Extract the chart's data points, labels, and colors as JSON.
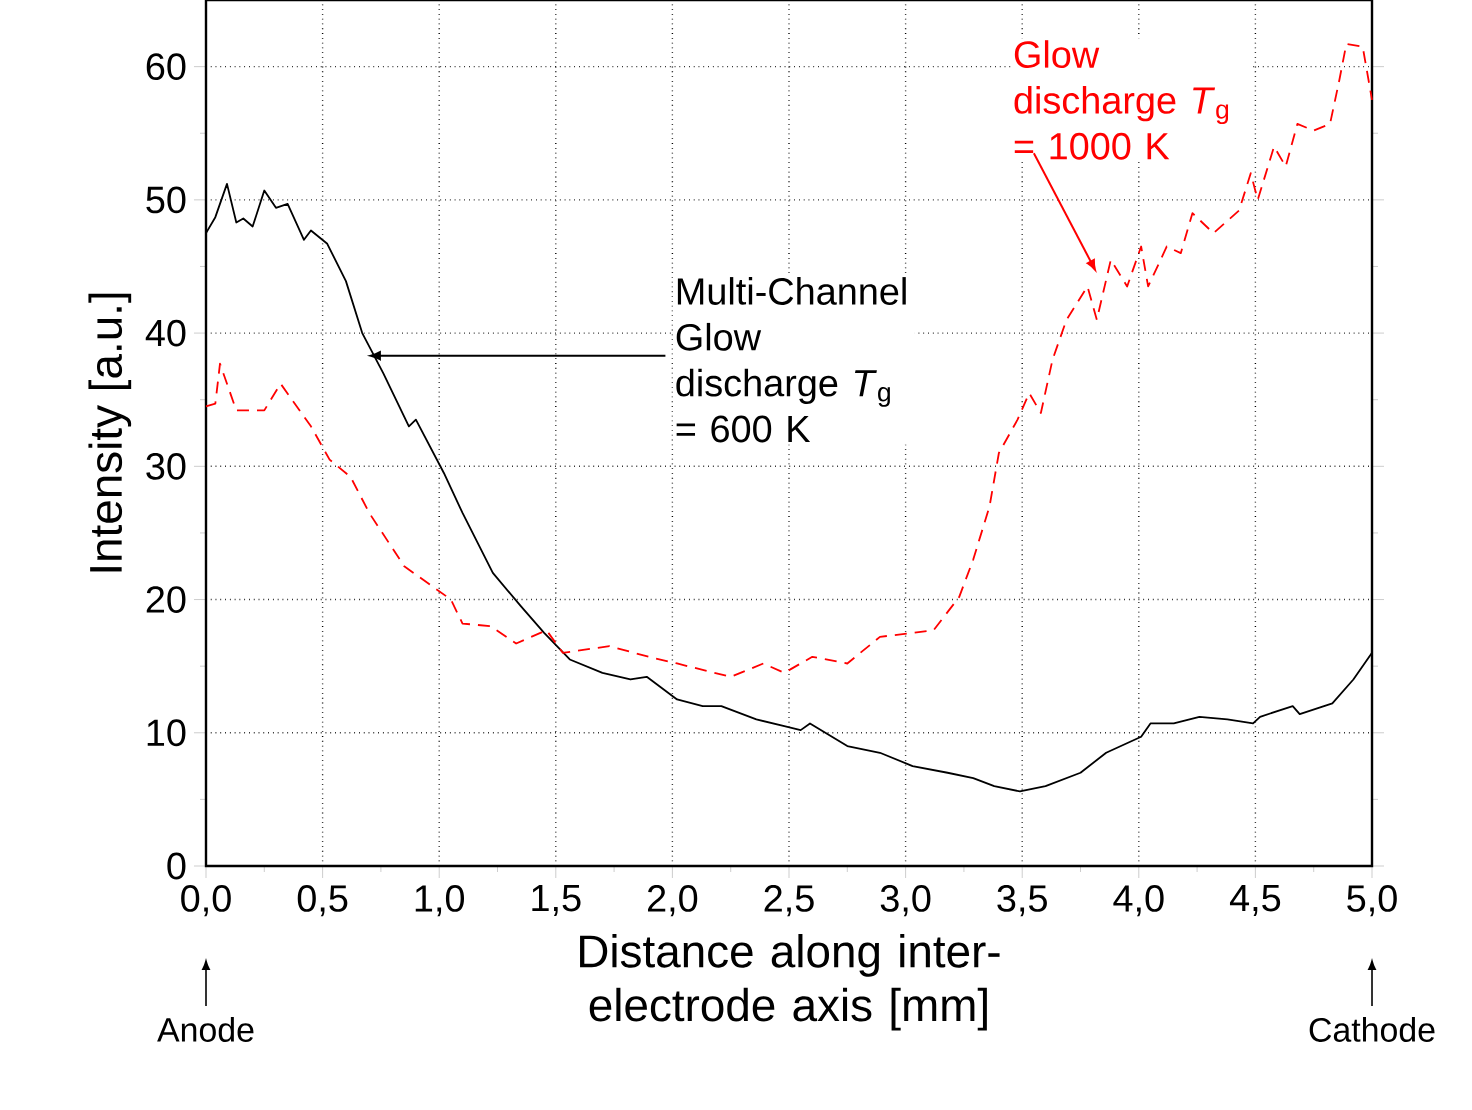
{
  "chart_data": {
    "type": "line",
    "xlabel": "Distance along inter-electrode axis [mm]",
    "ylabel": "Intensity [a.u.]",
    "xlim": [
      0,
      5
    ],
    "ylim": [
      0,
      65
    ],
    "xticks": [
      {
        "value": 0,
        "label": "0,0"
      },
      {
        "value": 0.5,
        "label": "0,5"
      },
      {
        "value": 1,
        "label": "1,0"
      },
      {
        "value": 1.5,
        "label": "1,5"
      },
      {
        "value": 2,
        "label": "2,0"
      },
      {
        "value": 2.5,
        "label": "2,5"
      },
      {
        "value": 3,
        "label": "3,0"
      },
      {
        "value": 3.5,
        "label": "3,5"
      },
      {
        "value": 4,
        "label": "4,0"
      },
      {
        "value": 4.5,
        "label": "4,5"
      },
      {
        "value": 5,
        "label": "5,0"
      }
    ],
    "yticks": [
      0,
      10,
      20,
      30,
      40,
      50,
      60
    ],
    "grid": true,
    "legend": false,
    "marker": "none",
    "series": [
      {
        "name": "Multi-Channel Glow discharge *T*$_{g}$ = 600 K",
        "color": "#000000",
        "line_style": "solid",
        "x": [
          0,
          0.04,
          0.09,
          0.13,
          0.16,
          0.2,
          0.25,
          0.3,
          0.35,
          0.42,
          0.45,
          0.52,
          0.6,
          0.67,
          0.76,
          0.87,
          0.9,
          1.02,
          1.1,
          1.23,
          1.35,
          1.45,
          1.56,
          1.7,
          1.82,
          1.89,
          2.02,
          2.13,
          2.21,
          2.36,
          2.48,
          2.55,
          2.59,
          2.75,
          2.89,
          3.03,
          3.18,
          3.29,
          3.38,
          3.49,
          3.6,
          3.75,
          3.86,
          4.01,
          4.05,
          4.15,
          4.26,
          4.38,
          4.49,
          4.52,
          4.66,
          4.69,
          4.83,
          4.92,
          5.0
        ],
        "values": [
          47.5,
          48.7,
          51.2,
          48.3,
          48.6,
          48.0,
          50.7,
          49.4,
          49.7,
          47.0,
          47.7,
          46.7,
          43.9,
          40.0,
          37.0,
          33.0,
          33.5,
          29.5,
          26.5,
          22.0,
          19.5,
          17.5,
          15.5,
          14.5,
          14.0,
          14.2,
          12.5,
          12.0,
          12.0,
          11.0,
          10.5,
          10.2,
          10.7,
          9.0,
          8.5,
          7.5,
          7.0,
          6.6,
          6.0,
          5.6,
          6.0,
          7.0,
          8.5,
          9.7,
          10.7,
          10.7,
          11.2,
          11.0,
          10.7,
          11.2,
          12.0,
          11.4,
          12.2,
          14.0,
          16.0
        ]
      },
      {
        "name": "Glow discharge *T*$_{g}$ = 1000 K",
        "color": "#ff0000",
        "line_style": "dashed",
        "x": [
          0,
          0.04,
          0.06,
          0.13,
          0.25,
          0.32,
          0.45,
          0.53,
          0.62,
          0.7,
          0.85,
          1.05,
          1.1,
          1.22,
          1.33,
          1.46,
          1.53,
          1.73,
          1.9,
          2.02,
          2.25,
          2.39,
          2.48,
          2.6,
          2.75,
          2.89,
          3.03,
          3.12,
          3.23,
          3.29,
          3.36,
          3.4,
          3.48,
          3.53,
          3.58,
          3.63,
          3.69,
          3.78,
          3.82,
          3.88,
          3.95,
          4.01,
          4.04,
          4.12,
          4.18,
          4.23,
          4.32,
          4.43,
          4.48,
          4.51,
          4.58,
          4.63,
          4.68,
          4.75,
          4.82,
          4.86,
          4.89,
          4.96,
          5.0
        ],
        "values": [
          34.5,
          34.7,
          37.7,
          34.2,
          34.2,
          36.2,
          33.0,
          30.5,
          29.2,
          26.5,
          22.5,
          20.0,
          18.2,
          18.0,
          16.7,
          17.7,
          16.0,
          16.5,
          15.7,
          15.2,
          14.2,
          15.2,
          14.5,
          15.7,
          15.2,
          17.2,
          17.5,
          17.7,
          20.2,
          23.0,
          27.0,
          31.0,
          33.5,
          35.5,
          34.0,
          38.0,
          41.0,
          43.5,
          41.0,
          45.5,
          43.5,
          46.5,
          43.5,
          46.5,
          46.0,
          49.0,
          47.5,
          49.2,
          52.0,
          50.0,
          54.0,
          52.5,
          55.7,
          55.2,
          55.7,
          59.0,
          61.7,
          61.5,
          57.5
        ]
      }
    ],
    "annotations": [
      "Anode",
      "Cathode"
    ]
  }
}
